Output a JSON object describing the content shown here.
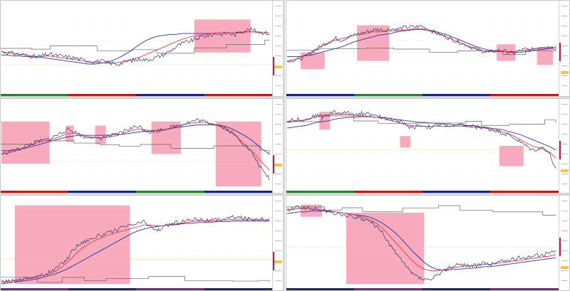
{
  "workspace": {
    "panels": [
      {
        "id": "p1",
        "title": "",
        "series": {
          "price": [
            46,
            45,
            44,
            43,
            42,
            41,
            40,
            41,
            43,
            42,
            41,
            40,
            39,
            38,
            36,
            35,
            34,
            35,
            33,
            32,
            31,
            33,
            35,
            36,
            37,
            36,
            38,
            40,
            43,
            47,
            52,
            56,
            58,
            60,
            63,
            65,
            66,
            68,
            67,
            69,
            66,
            70,
            72,
            73,
            70,
            69,
            68
          ],
          "fast_ma": [
            46,
            45,
            44,
            43,
            42,
            41,
            40,
            40,
            41,
            40,
            39,
            38,
            37,
            36,
            35,
            34,
            33,
            33,
            32,
            32,
            33,
            34,
            36,
            38,
            40,
            43,
            46,
            49,
            52,
            55,
            58,
            61,
            63,
            65,
            66,
            67,
            68,
            69,
            69,
            69,
            69,
            70,
            70,
            70,
            70,
            69,
            69
          ],
          "slow_ma": [
            42,
            42,
            41,
            41,
            40,
            40,
            39,
            39,
            38,
            37,
            36,
            35,
            34,
            33,
            32,
            31,
            31,
            32,
            33,
            35,
            38,
            42,
            46,
            51,
            56,
            60,
            63,
            65,
            66,
            67,
            67,
            68,
            68,
            68,
            68,
            68,
            68,
            69,
            69,
            69,
            69,
            69,
            70,
            70,
            70,
            69,
            69
          ]
        },
        "zones": [
          {
            "from": 0.72,
            "to": 0.93,
            "low": 0.45,
            "high": 0.85
          }
        ],
        "strip_colors": [
          "#2e7d32",
          "#b71c1c",
          "#1a237e",
          "#b71c1c"
        ]
      },
      {
        "id": "p2",
        "title": "",
        "series": {
          "price": [
            35,
            36,
            37,
            40,
            45,
            50,
            55,
            58,
            62,
            60,
            64,
            66,
            68,
            70,
            72,
            73,
            72,
            74,
            73,
            75,
            76,
            76,
            77,
            74,
            70,
            67,
            64,
            61,
            58,
            55,
            52,
            49,
            47,
            45,
            47,
            48,
            46,
            44,
            47,
            49,
            48,
            51,
            53,
            52,
            50
          ],
          "fast_ma": [
            34,
            36,
            38,
            42,
            46,
            50,
            54,
            58,
            60,
            62,
            64,
            66,
            67,
            68,
            70,
            70,
            71,
            71,
            72,
            72,
            73,
            74,
            74,
            72,
            70,
            67,
            64,
            61,
            58,
            55,
            52,
            49,
            47,
            46,
            46,
            46,
            46,
            46,
            47,
            48,
            49,
            50,
            50,
            51,
            51
          ],
          "slow_ma": [
            40,
            40,
            40,
            41,
            42,
            44,
            46,
            48,
            50,
            52,
            55,
            58,
            60,
            62,
            64,
            66,
            67,
            68,
            70,
            71,
            72,
            73,
            73,
            72,
            71,
            69,
            67,
            64,
            61,
            58,
            55,
            52,
            50,
            48,
            47,
            46,
            46,
            45,
            45,
            46,
            47,
            48,
            49,
            50,
            51
          ]
        },
        "zones": [
          {
            "from": 0.05,
            "to": 0.14,
            "low": 0.25,
            "high": 0.45
          },
          {
            "from": 0.26,
            "to": 0.38,
            "low": 0.35,
            "high": 0.78
          },
          {
            "from": 0.78,
            "to": 0.85,
            "low": 0.35,
            "high": 0.55
          },
          {
            "from": 0.93,
            "to": 0.99,
            "low": 0.3,
            "high": 0.5
          }
        ],
        "strip_colors": [
          "#1a237e",
          "#2e7d32",
          "#1a237e",
          "#b71c1c"
        ]
      },
      {
        "id": "p3",
        "title": "",
        "series": {
          "price": [
            40,
            42,
            44,
            46,
            50,
            52,
            55,
            57,
            58,
            62,
            66,
            70,
            68,
            65,
            60,
            62,
            58,
            60,
            62,
            63,
            66,
            70,
            72,
            75,
            70,
            67,
            68,
            70,
            72,
            74,
            76,
            78,
            80,
            82,
            80,
            78,
            77,
            74,
            70,
            65,
            58,
            50,
            42,
            30,
            18,
            10
          ],
          "fast_ma": [
            40,
            41,
            43,
            45,
            48,
            51,
            54,
            56,
            57,
            59,
            62,
            65,
            66,
            64,
            62,
            61,
            60,
            60,
            61,
            62,
            64,
            67,
            69,
            71,
            70,
            69,
            69,
            70,
            71,
            73,
            75,
            77,
            78,
            79,
            79,
            78,
            76,
            73,
            69,
            64,
            58,
            51,
            44,
            36,
            28,
            20
          ],
          "slow_ma": [
            44,
            44,
            45,
            46,
            47,
            49,
            51,
            53,
            55,
            57,
            59,
            61,
            62,
            63,
            63,
            63,
            63,
            63,
            63,
            64,
            64,
            65,
            66,
            67,
            68,
            68,
            69,
            70,
            71,
            72,
            73,
            74,
            75,
            76,
            76,
            76,
            76,
            75,
            73,
            70,
            66,
            62,
            57,
            51,
            45,
            40
          ]
        },
        "zones": [
          {
            "from": 0.0,
            "to": 0.18,
            "low": 0.28,
            "high": 0.8
          },
          {
            "from": 0.24,
            "to": 0.27,
            "low": 0.55,
            "high": 0.75
          },
          {
            "from": 0.35,
            "to": 0.39,
            "low": 0.52,
            "high": 0.75
          },
          {
            "from": 0.56,
            "to": 0.67,
            "low": 0.4,
            "high": 0.8
          },
          {
            "from": 0.8,
            "to": 0.97,
            "low": 0.0,
            "high": 0.8
          }
        ],
        "strip_colors": [
          "#b71c1c",
          "#1a237e",
          "#2e7d32",
          "#1a237e"
        ]
      },
      {
        "id": "p4",
        "title": "",
        "series": {
          "price": [
            80,
            82,
            83,
            82,
            85,
            88,
            86,
            89,
            92,
            90,
            91,
            90,
            89,
            91,
            88,
            86,
            85,
            83,
            82,
            80,
            75,
            72,
            76,
            74,
            73,
            75,
            76,
            75,
            74,
            76,
            75,
            74,
            73,
            72,
            70,
            69,
            66,
            64,
            60,
            55,
            50,
            45,
            46,
            48,
            40,
            20
          ],
          "fast_ma": [
            79,
            80,
            81,
            82,
            84,
            86,
            87,
            88,
            89,
            89,
            89,
            88,
            87,
            87,
            86,
            85,
            84,
            82,
            80,
            78,
            76,
            75,
            74,
            74,
            74,
            74,
            74,
            74,
            74,
            74,
            74,
            73,
            73,
            72,
            71,
            69,
            67,
            65,
            62,
            58,
            54,
            50,
            48,
            46,
            42,
            35
          ],
          "slow_ma": [
            72,
            73,
            74,
            75,
            77,
            79,
            80,
            81,
            83,
            84,
            85,
            85,
            86,
            86,
            86,
            85,
            85,
            84,
            83,
            82,
            81,
            80,
            79,
            79,
            78,
            78,
            77,
            77,
            76,
            76,
            75,
            75,
            74,
            73,
            72,
            71,
            70,
            68,
            66,
            64,
            61,
            58,
            55,
            52,
            49,
            45
          ]
        },
        "zones": [
          {
            "from": 0.12,
            "to": 0.16,
            "low": 0.7,
            "high": 0.92
          },
          {
            "from": 0.42,
            "to": 0.46,
            "low": 0.48,
            "high": 0.62
          },
          {
            "from": 0.79,
            "to": 0.88,
            "low": 0.25,
            "high": 0.5
          }
        ],
        "strip_colors": [
          "#2e7d32",
          "#b71c1c",
          "#1a237e",
          "#b71c1c"
        ]
      },
      {
        "id": "p5",
        "title": "",
        "series": {
          "price": [
            2,
            3,
            4,
            5,
            7,
            8,
            9,
            11,
            14,
            18,
            24,
            30,
            42,
            48,
            52,
            55,
            58,
            60,
            62,
            65,
            68,
            70,
            72,
            74,
            76,
            70,
            65,
            68,
            72,
            75,
            76,
            77,
            79,
            80,
            78,
            77,
            78,
            79,
            80,
            82,
            81,
            80,
            79,
            80,
            79,
            78
          ],
          "fast_ma": [
            2,
            3,
            4,
            5,
            6,
            7,
            8,
            10,
            12,
            15,
            20,
            26,
            33,
            40,
            46,
            50,
            54,
            57,
            60,
            62,
            64,
            66,
            68,
            70,
            72,
            72,
            71,
            71,
            72,
            73,
            74,
            75,
            76,
            77,
            77,
            77,
            77,
            78,
            78,
            79,
            79,
            79,
            79,
            79,
            79,
            78
          ],
          "slow_ma": [
            0,
            1,
            2,
            3,
            4,
            5,
            6,
            8,
            10,
            12,
            15,
            18,
            22,
            26,
            30,
            34,
            38,
            42,
            46,
            50,
            54,
            58,
            62,
            65,
            67,
            69,
            70,
            71,
            72,
            72,
            73,
            74,
            74,
            75,
            75,
            75,
            76,
            76,
            76,
            77,
            77,
            77,
            77,
            77,
            77,
            77
          ]
        },
        "zones": [
          {
            "from": 0.05,
            "to": 0.48,
            "low": 0.0,
            "high": 0.96
          }
        ],
        "strip_colors": [
          "#7b1fa2",
          "#1a237e",
          "#7b1fa2",
          "#1a237e"
        ]
      },
      {
        "id": "p6",
        "title": "",
        "series": {
          "price": [
            90,
            92,
            94,
            93,
            92,
            91,
            90,
            88,
            86,
            85,
            83,
            82,
            80,
            78,
            76,
            70,
            62,
            50,
            40,
            30,
            20,
            12,
            8,
            5,
            4,
            10,
            14,
            20,
            22,
            24,
            23,
            22,
            23,
            25,
            24,
            26,
            28,
            29,
            30,
            32,
            33,
            34,
            35,
            36,
            38,
            40
          ],
          "fast_ma": [
            90,
            91,
            92,
            92,
            92,
            91,
            90,
            89,
            88,
            87,
            86,
            85,
            83,
            81,
            78,
            74,
            68,
            60,
            52,
            44,
            36,
            28,
            22,
            18,
            16,
            16,
            17,
            19,
            20,
            21,
            22,
            22,
            23,
            24,
            24,
            25,
            26,
            27,
            28,
            29,
            30,
            31,
            32,
            33,
            34,
            36
          ],
          "slow_ma": [
            86,
            87,
            88,
            88,
            89,
            89,
            89,
            88,
            88,
            87,
            86,
            85,
            84,
            83,
            81,
            78,
            74,
            69,
            63,
            56,
            48,
            40,
            33,
            26,
            21,
            18,
            17,
            17,
            18,
            18,
            19,
            19,
            20,
            21,
            21,
            22,
            23,
            24,
            25,
            26,
            27,
            28,
            29,
            30,
            31,
            32
          ]
        },
        "zones": [
          {
            "from": 0.05,
            "to": 0.13,
            "low": 0.82,
            "high": 0.97
          },
          {
            "from": 0.22,
            "to": 0.51,
            "low": 0.0,
            "high": 0.87
          }
        ],
        "strip_colors": [
          "#1a237e",
          "#7b1fa2",
          "#1a237e",
          "#7b1fa2"
        ]
      }
    ],
    "colors": {
      "zone": "#f48fa6",
      "price": "#3a3f6e",
      "fast_ma": "#e53950",
      "slow_ma": "#2a33a8",
      "step": "#666666",
      "axis_marker": "#c2185b"
    }
  }
}
